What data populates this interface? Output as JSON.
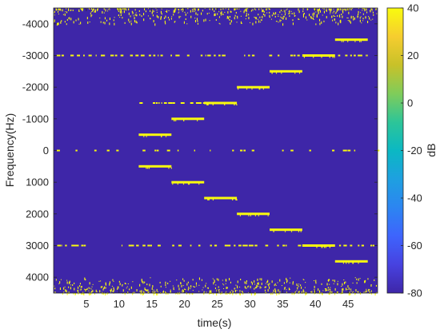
{
  "chart_data": {
    "type": "heatmap",
    "xlabel": "time(s)",
    "ylabel": "Frequency(Hz)",
    "colorbar_label": "dB",
    "xlim": [
      0,
      49.5
    ],
    "ylim": [
      -4500,
      4500
    ],
    "y_direction": "reversed",
    "x_ticks": [
      5,
      10,
      15,
      20,
      25,
      30,
      35,
      40,
      45
    ],
    "x_tick_labels": [
      "5",
      "10",
      "15",
      "20",
      "25",
      "30",
      "35",
      "40",
      "45"
    ],
    "y_ticks": [
      -4000,
      -3000,
      -2000,
      -1000,
      0,
      1000,
      2000,
      3000,
      4000
    ],
    "y_tick_labels": [
      "-4000",
      "-3000",
      "-2000",
      "-1000",
      "0",
      "1000",
      "2000",
      "3000",
      "4000"
    ],
    "colorbar_range": [
      -80,
      40
    ],
    "colorbar_ticks": [
      40,
      20,
      0,
      -20,
      -40,
      -60,
      -80
    ],
    "colorbar_tick_labels": [
      "40",
      "20",
      "0",
      "-20",
      "-40",
      "-60",
      "-80"
    ],
    "colormap": "parula",
    "background_color": "#3e26a8",
    "signal_color": "#f9fb0e",
    "tones": [
      {
        "t_start": 13,
        "t_end": 18,
        "frequency": 500
      },
      {
        "t_start": 18,
        "t_end": 23,
        "frequency": 1000
      },
      {
        "t_start": 23,
        "t_end": 28,
        "frequency": 1500
      },
      {
        "t_start": 28,
        "t_end": 33,
        "frequency": 2000
      },
      {
        "t_start": 33,
        "t_end": 38,
        "frequency": 2500
      },
      {
        "t_start": 38,
        "t_end": 43,
        "frequency": 3000
      },
      {
        "t_start": 43,
        "t_end": 48,
        "frequency": 3500
      }
    ],
    "noise_lines": [
      {
        "frequency": -3000,
        "t_start": 0,
        "t_end": 49.5
      },
      {
        "frequency": 3000,
        "t_start": 0,
        "t_end": 49.5
      },
      {
        "frequency": -1500,
        "t_start": 13,
        "t_end": 23
      },
      {
        "frequency": 0,
        "t_start": 0,
        "t_end": 49.5
      }
    ],
    "noise_bands": [
      {
        "f_min": -4500,
        "f_max": -4000
      },
      {
        "f_min": 4000,
        "f_max": 4500
      }
    ]
  }
}
